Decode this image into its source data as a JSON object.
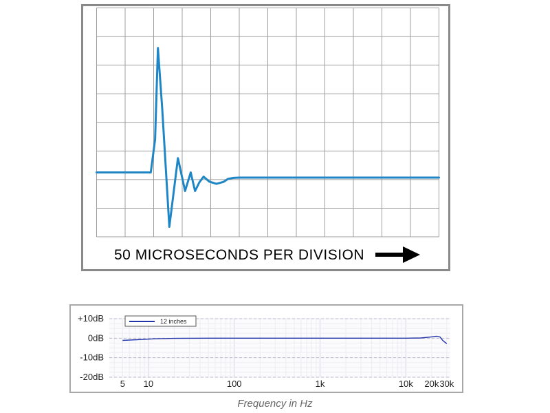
{
  "chart_data": [
    {
      "type": "line",
      "title": "",
      "xlabel": "50 MICROSECONDS PER DIVISION",
      "ylabel": "",
      "grid": true,
      "x_divisions": 12,
      "y_divisions": 8,
      "xlim": [
        0,
        12
      ],
      "ylim": [
        0,
        8
      ],
      "line_color": "#1f86c6",
      "series": [
        {
          "x": [
            0,
            1.9,
            2.05,
            2.15,
            2.3,
            2.55,
            2.85,
            3.1,
            3.3,
            3.45,
            3.6,
            3.75,
            3.95,
            4.2,
            4.45,
            4.6,
            4.8,
            5.0,
            12
          ],
          "y": [
            2.25,
            2.25,
            3.4,
            6.6,
            4.5,
            0.35,
            2.75,
            1.6,
            2.25,
            1.6,
            1.9,
            2.1,
            1.93,
            1.85,
            1.92,
            2.02,
            2.06,
            2.07,
            2.07
          ]
        }
      ]
    },
    {
      "type": "line",
      "title": "",
      "xlabel": "Frequency in Hz",
      "ylabel": "",
      "x_scale": "log",
      "xlim": [
        3.5,
        33000
      ],
      "ylim": [
        -20,
        10
      ],
      "grid": true,
      "legend_position": "top-left",
      "x_tick_labels": [
        "5",
        "10",
        "100",
        "1k",
        "10k",
        "20k",
        "30k"
      ],
      "x_tick_values": [
        5,
        10,
        100,
        1000,
        10000,
        20000,
        30000
      ],
      "y_tick_labels": [
        "+10dB",
        "0dB",
        "-10dB",
        "-20dB"
      ],
      "y_tick_values": [
        10,
        0,
        -10,
        -20
      ],
      "line_color": "#2233aa",
      "series": [
        {
          "name": "12 inches",
          "x": [
            5,
            8,
            12,
            20,
            50,
            100,
            1000,
            10000,
            15000,
            20000,
            23000,
            25000,
            27000,
            30000
          ],
          "y": [
            -1.1,
            -0.7,
            -0.3,
            -0.1,
            0,
            0,
            0,
            0,
            0.1,
            0.7,
            1.0,
            0.6,
            -1.2,
            -2.8
          ]
        }
      ]
    }
  ]
}
